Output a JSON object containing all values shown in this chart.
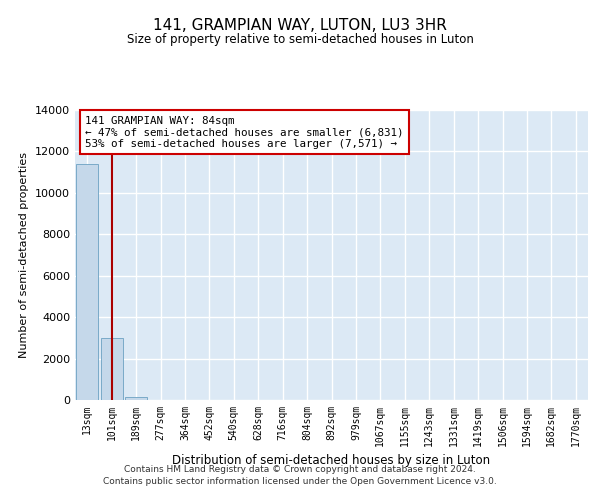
{
  "title": "141, GRAMPIAN WAY, LUTON, LU3 3HR",
  "subtitle": "Size of property relative to semi-detached houses in Luton",
  "xlabel": "Distribution of semi-detached houses by size in Luton",
  "ylabel": "Number of semi-detached properties",
  "bar_color": "#c5d8ea",
  "bar_edge_color": "#7aaac8",
  "background_color": "#dce9f5",
  "grid_color": "#ffffff",
  "vline_color": "#aa0000",
  "annotation_line1": "141 GRAMPIAN WAY: 84sqm",
  "annotation_line2": "← 47% of semi-detached houses are smaller (6,831)",
  "annotation_line3": "53% of semi-detached houses are larger (7,571) →",
  "annotation_box_color": "#ffffff",
  "annotation_box_edge_color": "#cc0000",
  "categories": [
    "13sqm",
    "101sqm",
    "189sqm",
    "277sqm",
    "364sqm",
    "452sqm",
    "540sqm",
    "628sqm",
    "716sqm",
    "804sqm",
    "892sqm",
    "979sqm",
    "1067sqm",
    "1155sqm",
    "1243sqm",
    "1331sqm",
    "1419sqm",
    "1506sqm",
    "1594sqm",
    "1682sqm",
    "1770sqm"
  ],
  "values": [
    11400,
    3000,
    150,
    10,
    5,
    2,
    1,
    1,
    1,
    0,
    0,
    0,
    0,
    0,
    0,
    0,
    0,
    0,
    0,
    0,
    0
  ],
  "ylim": [
    0,
    14000
  ],
  "yticks": [
    0,
    2000,
    4000,
    6000,
    8000,
    10000,
    12000,
    14000
  ],
  "footer1": "Contains HM Land Registry data © Crown copyright and database right 2024.",
  "footer2": "Contains public sector information licensed under the Open Government Licence v3.0."
}
